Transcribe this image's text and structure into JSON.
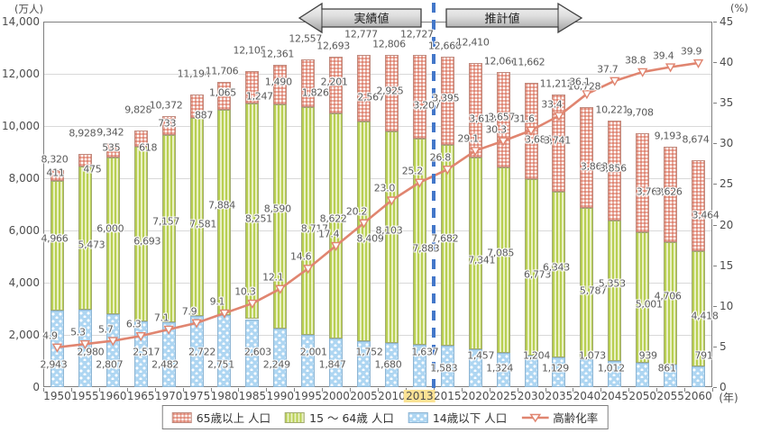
{
  "legend": {
    "items": [
      {
        "label": "65歳以上 人口",
        "swatch": "red-checker-pattern"
      },
      {
        "label": "15 ～ 64歳 人口",
        "swatch": "green-stripe-pattern"
      },
      {
        "label": "14歳以下 人口",
        "swatch": "blue-dot-pattern"
      },
      {
        "label": "高齢化率",
        "swatch": "line-triangle-marker"
      }
    ]
  },
  "chart_data": {
    "type": "stacked-bar+line",
    "categories": [
      "1950",
      "1955",
      "1960",
      "1965",
      "1970",
      "1975",
      "1980",
      "1985",
      "1990",
      "1995",
      "2000",
      "2005",
      "2010",
      "2013",
      "2015",
      "2020",
      "2025",
      "2030",
      "2035",
      "2040",
      "2045",
      "2050",
      "2055",
      "2060"
    ],
    "series": [
      {
        "name": "65歳以上 人口",
        "type": "bar",
        "axis": "left",
        "pattern": "red-checker",
        "values": [
          411,
          475,
          535,
          618,
          733,
          887,
          1065,
          1247,
          1490,
          1826,
          2201,
          2567,
          2925,
          3207,
          3395,
          3612,
          3657,
          3685,
          3741,
          3868,
          3856,
          3768,
          3626,
          3464
        ]
      },
      {
        "name": "15 ～ 64歳 人口",
        "type": "bar",
        "axis": "left",
        "pattern": "green-stripe",
        "values": [
          4966,
          5473,
          6000,
          6693,
          7157,
          7581,
          7884,
          8251,
          8590,
          8717,
          8622,
          8409,
          8103,
          7883,
          7682,
          7341,
          7085,
          6773,
          6343,
          5787,
          5353,
          5001,
          4706,
          4418
        ]
      },
      {
        "name": "14歳以下 人口",
        "type": "bar",
        "axis": "left",
        "pattern": "blue-dot",
        "values": [
          2943,
          2980,
          2807,
          2517,
          2482,
          2722,
          2751,
          2603,
          2249,
          2001,
          1847,
          1752,
          1680,
          1637,
          1583,
          1457,
          1324,
          1204,
          1129,
          1073,
          1012,
          939,
          861,
          791
        ]
      },
      {
        "name": "高齢化率",
        "type": "line",
        "axis": "right",
        "unit": "%",
        "values": [
          4.9,
          5.3,
          5.7,
          6.3,
          7.1,
          7.9,
          9.1,
          10.3,
          12.1,
          14.6,
          17.4,
          20.2,
          23.0,
          25.2,
          26.8,
          29.1,
          30.3,
          31.6,
          33.4,
          36.1,
          37.7,
          38.8,
          39.4,
          39.9
        ]
      }
    ],
    "totals": [
      8320,
      8928,
      9342,
      9828,
      10372,
      11194,
      11706,
      12105,
      12361,
      12557,
      12693,
      12777,
      12806,
      12727,
      12660,
      12410,
      12066,
      11662,
      11212,
      10728,
      10221,
      9708,
      9193,
      8674
    ],
    "left_axis": {
      "unit_label": "(万人)",
      "min": 0,
      "max": 14000,
      "step": 2000,
      "tick_labels": [
        "14,000",
        "12,000",
        "10,000",
        "8,000",
        "6,000",
        "4,000",
        "2,000",
        "0"
      ],
      "tick_values": [
        14000,
        12000,
        10000,
        8000,
        6000,
        4000,
        2000,
        0
      ]
    },
    "right_axis": {
      "unit_label": "(%)",
      "min": 0,
      "max": 45,
      "step": 5,
      "tick_labels": [
        "45",
        "40",
        "35",
        "30",
        "25",
        "20",
        "15",
        "10",
        "5",
        "0"
      ],
      "tick_values": [
        45,
        40,
        35,
        30,
        25,
        20,
        15,
        10,
        5,
        0
      ]
    },
    "x_axis": {
      "unit_label": "(年)",
      "highlight_category": "2013",
      "divider_between": [
        "2013",
        "2015"
      ]
    },
    "annotations": {
      "actual": "実績値",
      "projection": "推計値"
    },
    "layout": {
      "grid": "horizontal",
      "legend_position": "bottom-center"
    },
    "colors": {
      "line": "#e08570",
      "red_pattern": "#d66048",
      "green_bar": "#b8cf52",
      "blue_bar": "#aed6f2",
      "divider": "#4377c9",
      "highlight": "#fbe294",
      "label_text": "#595959",
      "axis_text": "#4d4d4d"
    }
  }
}
